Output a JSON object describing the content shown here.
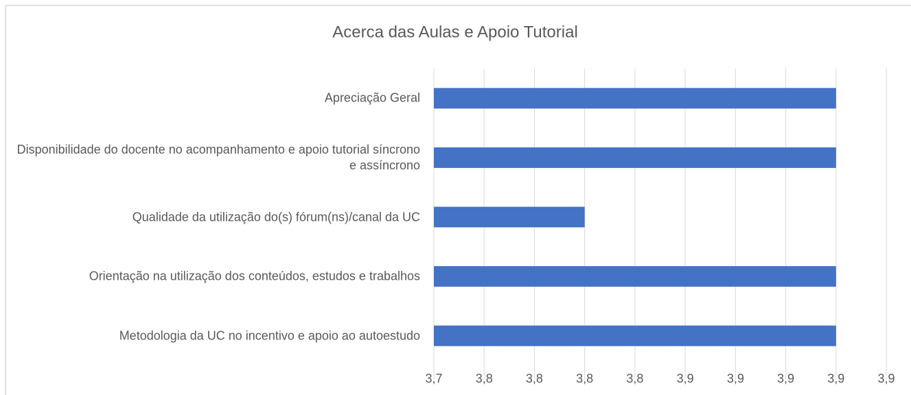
{
  "chart_data": {
    "type": "barh",
    "title": "Acerca das Aulas e Apoio Tutorial",
    "categories": [
      "Apreciação Geral",
      "Disponibilidade do docente no acompanhamento e apoio tutorial síncrono e assíncrono",
      "Qualidade da utilização do(s) fórum(ns)/canal da UC",
      "Orientação na utilização dos conteúdos, estudos e trabalhos",
      "Metodologia da UC no incentivo e apoio ao autoestudo"
    ],
    "values": [
      3.925,
      3.925,
      3.8125,
      3.925,
      3.925
    ],
    "color": "#4472c4",
    "xlim": [
      3.745,
      3.9475
    ],
    "xticks": [
      {
        "value": 3.745,
        "label": "3,7"
      },
      {
        "value": 3.7675,
        "label": "3,8"
      },
      {
        "value": 3.79,
        "label": "3,8"
      },
      {
        "value": 3.8125,
        "label": "3,8"
      },
      {
        "value": 3.835,
        "label": "3,8"
      },
      {
        "value": 3.8575,
        "label": "3,9"
      },
      {
        "value": 3.88,
        "label": "3,9"
      },
      {
        "value": 3.9025,
        "label": "3,9"
      },
      {
        "value": 3.925,
        "label": "3,9"
      },
      {
        "value": 3.9475,
        "label": "3,9"
      }
    ],
    "grid": true
  }
}
